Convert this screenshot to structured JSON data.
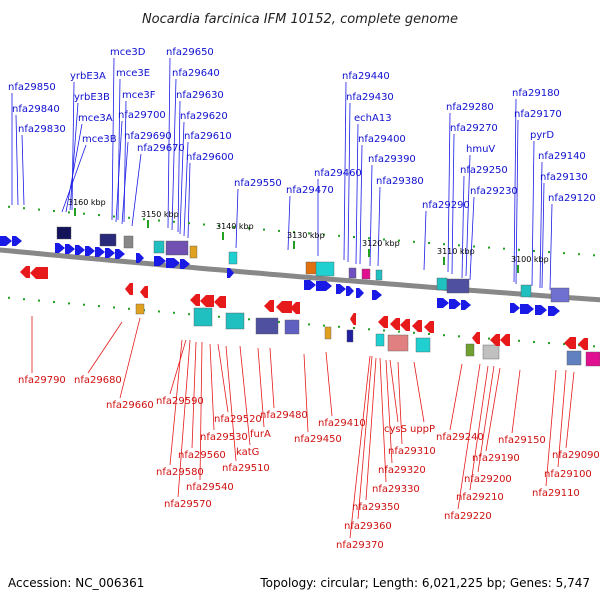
{
  "header": {
    "title": "Nocardia farcinica IFM 10152, complete genome"
  },
  "footer": {
    "accession": "Accession: NC_006361",
    "summary": "Topology: circular; Length: 6,021,225 bp; Genes: 5,747"
  },
  "colors": {
    "forward": "#1a1ae6",
    "reverse": "#e61a1a",
    "tick": "#22a022",
    "backbone": "#888888"
  },
  "ticks": [
    "3160 kbp",
    "3150 kbp",
    "3140 kbp",
    "3130 kbp",
    "3120 kbp",
    "3110 kbp",
    "3100 kbp"
  ],
  "top_genes": [
    "nfa29850",
    "nfa29840",
    "nfa29830",
    "yrbE3A",
    "yrbE3B",
    "mce3A",
    "mce3B",
    "mce3D",
    "mce3E",
    "mce3F",
    "nfa29700",
    "nfa29690",
    "nfa29670",
    "nfa29650",
    "nfa29640",
    "nfa29630",
    "nfa29620",
    "nfa29610",
    "nfa29600",
    "nfa29550",
    "nfa29470",
    "nfa29460",
    "nfa29440",
    "nfa29430",
    "echA13",
    "nfa29400",
    "nfa29390",
    "nfa29380",
    "nfa29290",
    "nfa29280",
    "nfa29270",
    "hmuV",
    "nfa29250",
    "nfa29230",
    "nfa29180",
    "nfa29170",
    "pyrD",
    "nfa29140",
    "nfa29130",
    "nfa29120"
  ],
  "bottom_genes": [
    "nfa29790",
    "nfa29680",
    "nfa29660",
    "nfa29590",
    "nfa29580",
    "nfa29570",
    "nfa29560",
    "nfa29540",
    "nfa29530",
    "nfa29520",
    "nfa29510",
    "katG",
    "furA",
    "nfa29480",
    "nfa29450",
    "nfa29410",
    "nfa29370",
    "nfa29360",
    "nfa29350",
    "nfa29330",
    "nfa29320",
    "cysS",
    "nfa29310",
    "uppP",
    "nfa29240",
    "nfa29220",
    "nfa29210",
    "nfa29200",
    "nfa29190",
    "nfa29150",
    "nfa29110",
    "nfa29100",
    "nfa29090"
  ]
}
